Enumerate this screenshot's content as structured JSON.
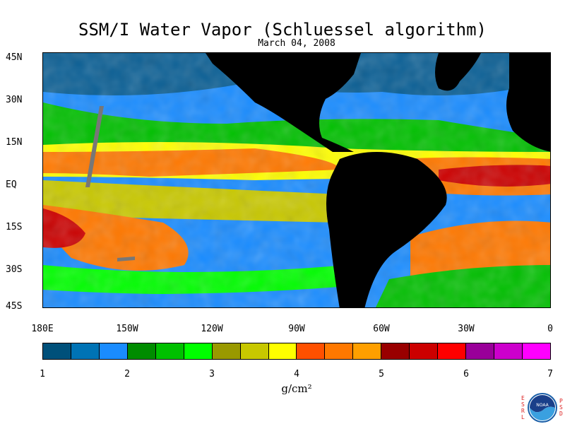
{
  "title": "SSM/I Water Vapor (Schluessel algorithm)",
  "subtitle": "March 04, 2008",
  "lat_labels": [
    "45N",
    "30N",
    "15N",
    "EQ",
    "15S",
    "30S",
    "45S"
  ],
  "lon_labels": [
    "180E",
    "150W",
    "120W",
    "90W",
    "60W",
    "30W",
    "0"
  ],
  "colorbar": {
    "ticks": [
      "1",
      "2",
      "3",
      "4",
      "5",
      "6",
      "7"
    ],
    "units": "g/cm²",
    "colors": [
      "#00507a",
      "#0073b5",
      "#1a8cff",
      "#008c00",
      "#00c000",
      "#00ff00",
      "#999900",
      "#c8c800",
      "#ffff00",
      "#ff5000",
      "#ff7800",
      "#ff9f00",
      "#990000",
      "#cc0000",
      "#ff0000",
      "#990099",
      "#cc00cc",
      "#ff00ff"
    ]
  },
  "logo": {
    "left_letters": "ESRL",
    "right_letters": "PSD",
    "name": "NOAA"
  }
}
